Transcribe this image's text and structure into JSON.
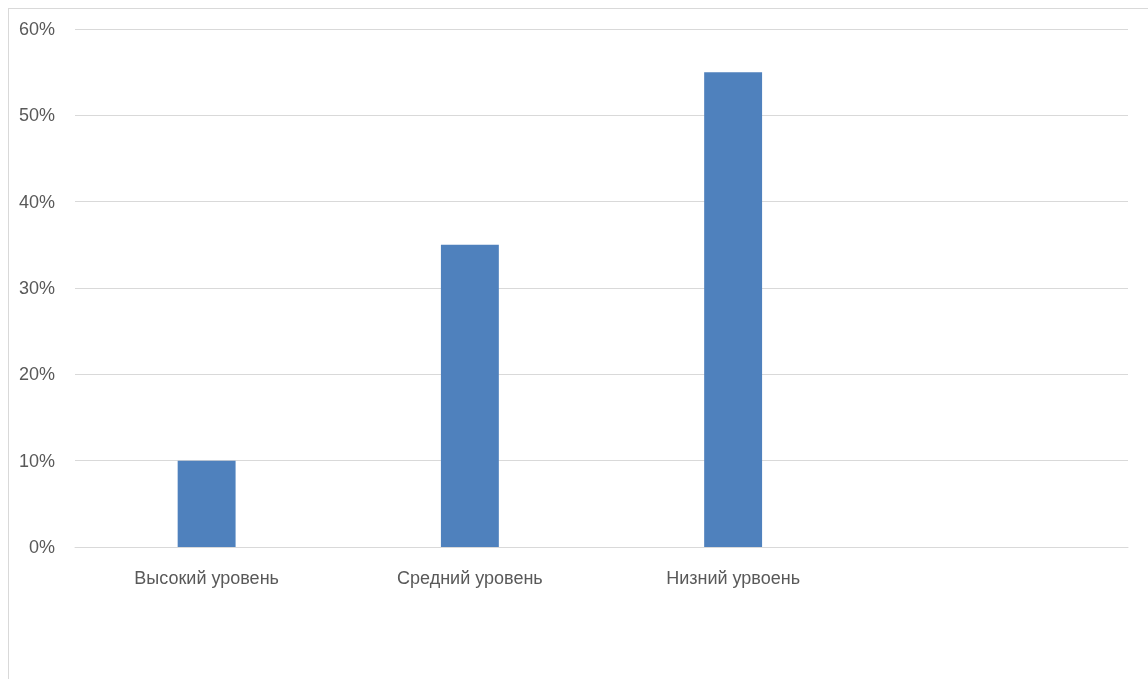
{
  "chart_data": {
    "type": "bar",
    "categories": [
      "Высокий уровень",
      "Средний уровень",
      "Низний урвоень",
      null
    ],
    "values": [
      10,
      35,
      55,
      null
    ],
    "color": "#4f81bd",
    "ylim": [
      0,
      60
    ],
    "yticks": [
      {
        "value": 0,
        "label": "0%"
      },
      {
        "value": 10,
        "label": "10%"
      },
      {
        "value": 20,
        "label": "20%"
      },
      {
        "value": 30,
        "label": "30%"
      },
      {
        "value": 40,
        "label": "40%"
      },
      {
        "value": 50,
        "label": "50%"
      },
      {
        "value": 60,
        "label": "60%"
      }
    ],
    "grid": true
  }
}
